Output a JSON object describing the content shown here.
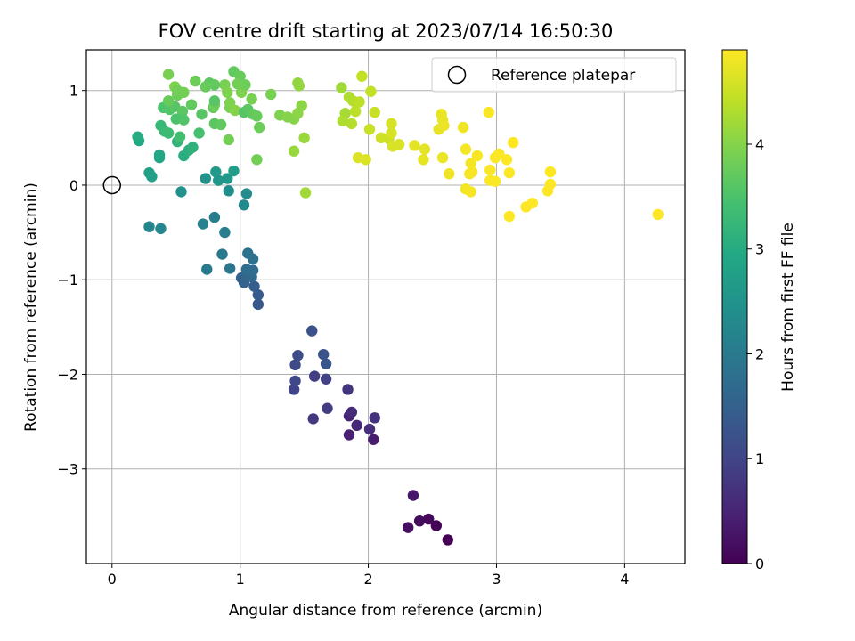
{
  "chart_data": {
    "type": "scatter",
    "title": "FOV centre drift starting at 2023/07/14 16:50:30",
    "xlabel": "Angular distance from reference (arcmin)",
    "ylabel": "Rotation from reference (arcmin)",
    "xlim": [
      -0.2,
      4.47
    ],
    "ylim": [
      -4.0,
      1.43
    ],
    "xticks": [
      0,
      1,
      2,
      3,
      4
    ],
    "yticks": [
      1,
      0,
      -1,
      -2,
      -3
    ],
    "xtick_labels": [
      "0",
      "1",
      "2",
      "3",
      "4"
    ],
    "ytick_labels": [
      "1",
      "0",
      "−1",
      "−2",
      "−3"
    ],
    "grid": true,
    "colorbar": {
      "label": "Hours from first FF file",
      "range": [
        0,
        4.9
      ],
      "ticks": [
        0,
        1,
        2,
        3,
        4
      ],
      "tick_labels": [
        "0",
        "1",
        "2",
        "3",
        "4"
      ],
      "colormap": "viridis"
    },
    "reference": {
      "name": "Reference platepar",
      "x": 0,
      "y": 0
    },
    "legend": {
      "location": "top-right",
      "entries": [
        "Reference platepar"
      ]
    },
    "series": [
      {
        "points": [
          [
            2.62,
            -3.75,
            0.0
          ],
          [
            2.53,
            -3.6,
            0.05
          ],
          [
            2.47,
            -3.53,
            0.1
          ],
          [
            2.4,
            -3.55,
            0.15
          ],
          [
            2.31,
            -3.62,
            0.2
          ],
          [
            2.35,
            -3.28,
            0.3
          ],
          [
            2.04,
            -2.69,
            0.4
          ],
          [
            1.85,
            -2.64,
            0.45
          ],
          [
            1.85,
            -2.44,
            0.5
          ],
          [
            1.91,
            -2.54,
            0.55
          ],
          [
            1.87,
            -2.4,
            0.6
          ],
          [
            2.01,
            -2.58,
            0.65
          ],
          [
            2.05,
            -2.46,
            0.7
          ],
          [
            1.84,
            -2.16,
            0.75
          ],
          [
            1.57,
            -2.47,
            0.8
          ],
          [
            1.68,
            -2.36,
            0.85
          ],
          [
            1.58,
            -2.02,
            0.9
          ],
          [
            1.67,
            -2.05,
            0.95
          ],
          [
            1.42,
            -2.16,
            1.0
          ],
          [
            1.43,
            -2.07,
            1.05
          ],
          [
            1.43,
            -1.9,
            1.1
          ],
          [
            1.45,
            -1.8,
            1.15
          ],
          [
            1.56,
            -1.54,
            1.2
          ],
          [
            1.65,
            -1.79,
            1.25
          ],
          [
            1.67,
            -1.89,
            1.3
          ],
          [
            1.14,
            -1.26,
            1.35
          ],
          [
            1.14,
            -1.16,
            1.4
          ],
          [
            1.11,
            -1.07,
            1.45
          ],
          [
            1.03,
            -1.03,
            1.5
          ],
          [
            1.01,
            -0.98,
            1.55
          ],
          [
            1.05,
            -0.95,
            1.6
          ],
          [
            1.09,
            -0.97,
            1.65
          ],
          [
            1.1,
            -0.9,
            1.7
          ],
          [
            1.05,
            -0.89,
            1.75
          ],
          [
            1.1,
            -0.78,
            1.8
          ],
          [
            1.06,
            -0.72,
            1.85
          ],
          [
            0.92,
            -0.88,
            1.9
          ],
          [
            0.86,
            -0.73,
            1.95
          ],
          [
            0.74,
            -0.89,
            2.0
          ],
          [
            0.88,
            -0.5,
            2.05
          ],
          [
            0.8,
            -0.34,
            2.1
          ],
          [
            0.71,
            -0.41,
            2.15
          ],
          [
            0.29,
            -0.44,
            2.2
          ],
          [
            0.38,
            -0.46,
            2.25
          ],
          [
            1.03,
            -0.21,
            2.3
          ],
          [
            1.05,
            -0.09,
            2.35
          ],
          [
            0.91,
            -0.06,
            2.4
          ],
          [
            0.54,
            -0.07,
            2.45
          ],
          [
            0.73,
            0.07,
            2.5
          ],
          [
            0.83,
            0.05,
            2.55
          ],
          [
            0.9,
            0.07,
            2.6
          ],
          [
            0.81,
            0.14,
            2.65
          ],
          [
            0.95,
            0.15,
            2.7
          ],
          [
            0.29,
            0.13,
            2.75
          ],
          [
            0.31,
            0.09,
            2.8
          ],
          [
            0.37,
            0.29,
            2.85
          ],
          [
            0.37,
            0.32,
            2.9
          ],
          [
            0.21,
            0.47,
            2.95
          ],
          [
            0.2,
            0.51,
            3.0
          ],
          [
            0.56,
            0.31,
            3.05
          ],
          [
            0.6,
            0.37,
            3.1
          ],
          [
            0.63,
            0.4,
            3.15
          ],
          [
            0.51,
            0.46,
            3.2
          ],
          [
            0.38,
            0.63,
            3.25
          ],
          [
            0.41,
            0.57,
            3.3
          ],
          [
            0.44,
            0.55,
            3.35
          ],
          [
            0.53,
            0.51,
            3.4
          ],
          [
            0.68,
            0.55,
            3.45
          ],
          [
            0.4,
            0.82,
            3.5
          ],
          [
            0.45,
            0.8,
            3.55
          ],
          [
            0.49,
            0.83,
            3.6
          ],
          [
            0.55,
            0.78,
            3.65
          ],
          [
            0.62,
            0.85,
            3.7
          ],
          [
            0.44,
            0.89,
            3.75
          ],
          [
            0.51,
            0.95,
            3.8
          ],
          [
            0.56,
            0.98,
            3.85
          ],
          [
            0.44,
            1.17,
            3.9
          ],
          [
            0.49,
            1.04,
            3.95
          ],
          [
            0.5,
            0.7,
            3.5
          ],
          [
            0.56,
            0.69,
            3.55
          ],
          [
            0.7,
            0.75,
            3.6
          ],
          [
            0.8,
            0.65,
            3.65
          ],
          [
            0.85,
            0.64,
            3.7
          ],
          [
            0.79,
            0.82,
            3.75
          ],
          [
            0.8,
            0.85,
            3.8
          ],
          [
            0.91,
            0.48,
            3.85
          ],
          [
            0.92,
            0.82,
            3.9
          ],
          [
            0.92,
            0.87,
            3.95
          ],
          [
            0.96,
            0.79,
            4.0
          ],
          [
            1.03,
            0.77,
            3.6
          ],
          [
            1.06,
            0.8,
            3.65
          ],
          [
            1.1,
            0.75,
            3.7
          ],
          [
            1.13,
            0.73,
            3.75
          ],
          [
            1.15,
            0.61,
            3.8
          ],
          [
            1.13,
            0.27,
            3.85
          ],
          [
            1.09,
            0.91,
            3.9
          ],
          [
            1.01,
            0.98,
            3.95
          ],
          [
            0.95,
            1.2,
            3.7
          ],
          [
            1.0,
            1.15,
            3.75
          ],
          [
            1.04,
            1.06,
            3.8
          ],
          [
            0.98,
            1.07,
            3.85
          ],
          [
            0.88,
            1.06,
            3.9
          ],
          [
            0.9,
            0.98,
            3.95
          ],
          [
            0.8,
            0.89,
            3.6
          ],
          [
            0.76,
            1.08,
            3.65
          ],
          [
            0.8,
            1.06,
            3.7
          ],
          [
            0.73,
            1.04,
            3.75
          ],
          [
            0.65,
            1.1,
            3.8
          ],
          [
            0.51,
            1.0,
            3.85
          ],
          [
            1.24,
            0.96,
            3.9
          ],
          [
            1.31,
            0.74,
            3.95
          ],
          [
            1.37,
            0.72,
            4.0
          ],
          [
            1.42,
            0.7,
            4.0
          ],
          [
            1.45,
            0.76,
            4.05
          ],
          [
            1.48,
            0.84,
            4.05
          ],
          [
            1.45,
            1.08,
            4.1
          ],
          [
            1.46,
            1.05,
            4.1
          ],
          [
            1.5,
            0.5,
            4.15
          ],
          [
            1.42,
            0.36,
            4.15
          ],
          [
            1.51,
            -0.08,
            4.2
          ],
          [
            1.79,
            1.03,
            4.2
          ],
          [
            1.82,
            0.76,
            4.25
          ],
          [
            1.8,
            0.68,
            4.3
          ],
          [
            1.85,
            0.93,
            4.3
          ],
          [
            1.88,
            0.89,
            4.35
          ],
          [
            1.87,
            0.65,
            4.35
          ],
          [
            1.9,
            0.78,
            4.4
          ],
          [
            1.93,
            0.88,
            4.4
          ],
          [
            1.95,
            1.15,
            4.45
          ],
          [
            2.02,
            0.99,
            4.45
          ],
          [
            2.01,
            0.59,
            4.5
          ],
          [
            2.05,
            0.77,
            4.5
          ],
          [
            2.1,
            0.5,
            4.55
          ],
          [
            2.16,
            0.49,
            4.55
          ],
          [
            2.18,
            0.55,
            4.6
          ],
          [
            2.18,
            0.65,
            4.6
          ],
          [
            2.19,
            0.41,
            4.62
          ],
          [
            2.24,
            0.43,
            4.62
          ],
          [
            1.92,
            0.29,
            4.65
          ],
          [
            1.98,
            0.27,
            4.65
          ],
          [
            2.36,
            0.42,
            4.7
          ],
          [
            2.44,
            0.38,
            4.7
          ],
          [
            2.43,
            0.27,
            4.72
          ],
          [
            2.55,
            0.59,
            4.72
          ],
          [
            2.57,
            0.75,
            4.75
          ],
          [
            2.58,
            0.69,
            4.75
          ],
          [
            2.59,
            0.63,
            4.77
          ],
          [
            2.58,
            0.29,
            4.77
          ],
          [
            2.63,
            0.12,
            4.8
          ],
          [
            2.74,
            0.61,
            4.8
          ],
          [
            2.76,
            0.38,
            4.82
          ],
          [
            2.76,
            -0.04,
            4.82
          ],
          [
            2.79,
            0.12,
            4.84
          ],
          [
            2.8,
            0.23,
            4.84
          ],
          [
            2.8,
            -0.07,
            4.85
          ],
          [
            2.81,
            0.14,
            4.86
          ],
          [
            2.85,
            0.31,
            4.86
          ],
          [
            2.94,
            0.77,
            4.87
          ],
          [
            2.95,
            0.16,
            4.87
          ],
          [
            2.95,
            0.05,
            4.88
          ],
          [
            2.99,
            0.04,
            4.88
          ],
          [
            2.99,
            0.29,
            4.88
          ],
          [
            3.02,
            0.33,
            4.89
          ],
          [
            3.08,
            0.27,
            4.89
          ],
          [
            3.1,
            0.13,
            4.89
          ],
          [
            3.1,
            -0.33,
            4.9
          ],
          [
            3.13,
            0.45,
            4.9
          ],
          [
            3.23,
            -0.23,
            4.9
          ],
          [
            3.28,
            -0.19,
            4.9
          ],
          [
            3.4,
            -0.06,
            4.9
          ],
          [
            3.42,
            0.14,
            4.9
          ],
          [
            3.42,
            0.01,
            4.9
          ],
          [
            4.26,
            -0.31,
            4.9
          ]
        ]
      }
    ]
  }
}
